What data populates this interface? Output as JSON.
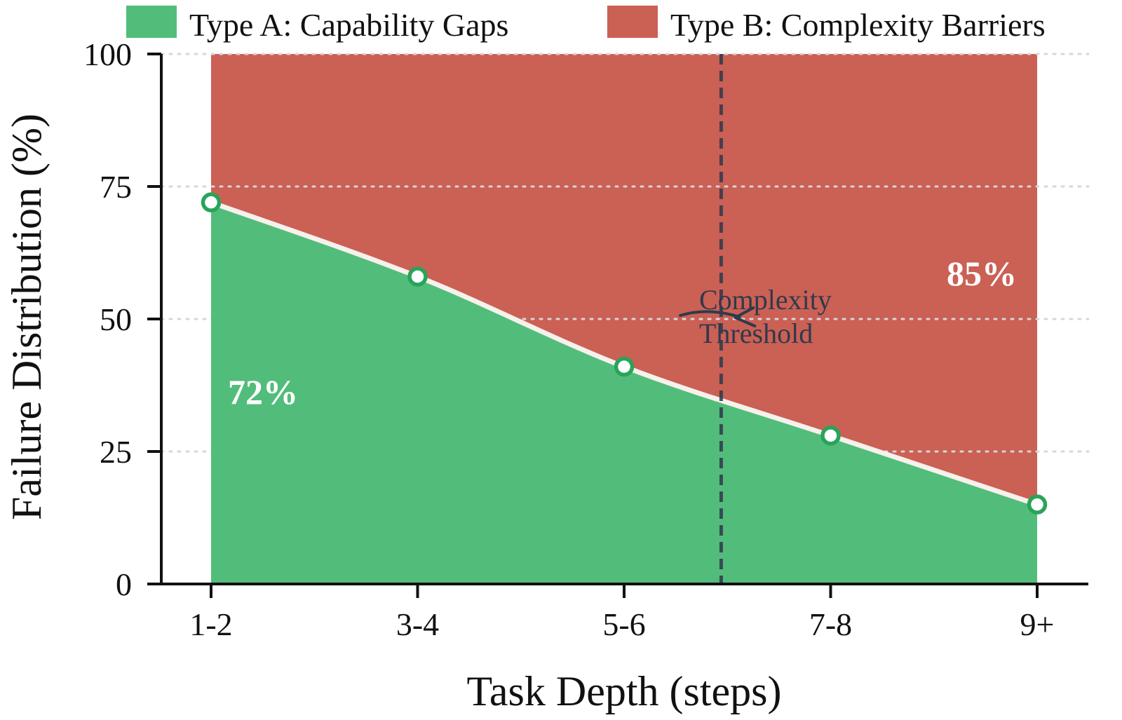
{
  "chart_data": {
    "type": "area",
    "title": "",
    "xlabel": "Task Depth (steps)",
    "ylabel": "Failure Distribution (%)",
    "categories": [
      "1-2",
      "3-4",
      "5-6",
      "7-8",
      "9+"
    ],
    "ylim": [
      0,
      100
    ],
    "yticks": [
      0,
      25,
      50,
      75,
      100
    ],
    "stacked": true,
    "grid": "horizontal dotted",
    "legend_position": "top",
    "series": [
      {
        "name": "Type A: Capability Gaps",
        "color": "#52bd7b",
        "values": [
          72,
          58,
          41,
          28,
          15
        ]
      },
      {
        "name": "Type B: Complexity Barriers",
        "color": "#cb6055",
        "values": [
          28,
          42,
          59,
          72,
          85
        ]
      }
    ],
    "area_labels": {
      "type_a": "72%",
      "type_b": "85%"
    },
    "annotation": {
      "line1": "Complexity",
      "line2": "Threshold",
      "x_position": 2.47,
      "y_target": 50,
      "color": "#2f3a4c"
    }
  }
}
